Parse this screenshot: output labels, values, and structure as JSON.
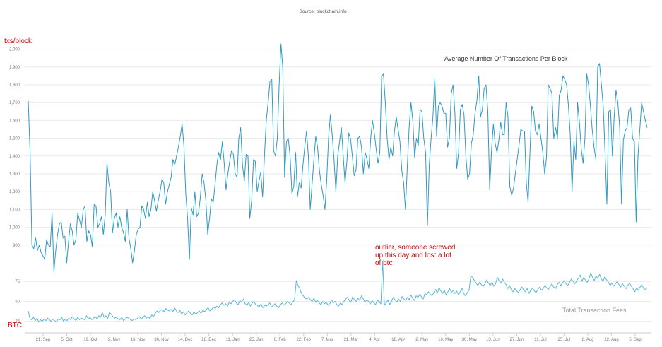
{
  "source": "Source: blockchain.info",
  "chart_data": [
    {
      "type": "line",
      "title": "Average Number Of Transactions Per Block",
      "ylabel": "txs/block",
      "ylim": [
        800,
        2050
      ],
      "yticks": [
        900,
        1000,
        1100,
        1200,
        1300,
        1400,
        1500,
        1600,
        1700,
        1800,
        1900,
        2000
      ],
      "ytick_labels": [
        "900",
        "1,000",
        "1,100",
        "1,200",
        "1,300",
        "1,400",
        "1,500",
        "1,600",
        "1,700",
        "1,800",
        "1,900",
        "2,000"
      ],
      "grid": true,
      "color": "#2e9ac4",
      "series": [
        {
          "values": [
            1710,
            1420,
            900,
            880,
            940,
            870,
            900,
            860,
            840,
            820,
            930,
            900,
            890,
            1080,
            750,
            870,
            960,
            1020,
            1030,
            940,
            950,
            800,
            920,
            1020,
            980,
            900,
            930,
            1080,
            1040,
            1000,
            1100,
            1120,
            920,
            980,
            960,
            890,
            1130,
            1120,
            1000,
            1020,
            1060,
            960,
            1070,
            1360,
            1250,
            1200,
            970,
            1050,
            1080,
            1000,
            1060,
            1000,
            970,
            920,
            1100,
            940,
            880,
            800,
            870,
            960,
            990,
            1000,
            1120,
            1100,
            1050,
            1140,
            1060,
            1100,
            1200,
            1150,
            1090,
            1150,
            1200,
            1270,
            1250,
            1130,
            1200,
            1240,
            1280,
            1380,
            1350,
            1400,
            1450,
            1510,
            1580,
            1460,
            1190,
            1050,
            820,
            1110,
            1070,
            1200,
            1060,
            1080,
            1170,
            1300,
            1250,
            1150,
            960,
            1050,
            1160,
            1140,
            1240,
            1350,
            1420,
            1380,
            1480,
            1360,
            1210,
            1300,
            1370,
            1430,
            1410,
            1300,
            1280,
            1500,
            1560,
            1350,
            1260,
            1410,
            1400,
            1050,
            1150,
            1380,
            1370,
            1200,
            1260,
            1310,
            1170,
            1400,
            1600,
            1700,
            1820,
            1830,
            1430,
            1400,
            1500,
            1800,
            2030,
            1900,
            1280,
            1480,
            1500,
            1400,
            1190,
            1230,
            1420,
            1170,
            1250,
            1220,
            1350,
            1450,
            1540,
            1400,
            1100,
            1240,
            1380,
            1510,
            1450,
            1320,
            1240,
            1180,
            1100,
            1260,
            1500,
            1630,
            1520,
            1380,
            1200,
            1400,
            1480,
            1560,
            1400,
            1250,
            1370,
            1530,
            1500,
            1400,
            1290,
            1320,
            1500,
            1510,
            1450,
            1300,
            1420,
            1380,
            1330,
            1500,
            1600,
            1530,
            1440,
            1360,
            1420,
            1850,
            1860,
            1700,
            1500,
            1380,
            1450,
            1400,
            1540,
            1620,
            1550,
            1480,
            1320,
            1250,
            1100,
            1340,
            1560,
            1700,
            1600,
            1390,
            1500,
            1460,
            1660,
            1650,
            1500,
            1420,
            1010,
            1350,
            1500,
            1620,
            1840,
            1510,
            1680,
            1700,
            1680,
            1640,
            1640,
            1450,
            1500,
            1750,
            1800,
            1640,
            1330,
            1420,
            1660,
            1690,
            1630,
            1400,
            1270,
            1300,
            1470,
            1520,
            1640,
            1710,
            1850,
            1620,
            1660,
            1780,
            1800,
            1650,
            1210,
            1430,
            1580,
            1470,
            1420,
            1490,
            1590,
            1520,
            1520,
            1700,
            1620,
            1230,
            1180,
            1220,
            1300,
            1380,
            1460,
            1550,
            1540,
            1540,
            1250,
            1140,
            1420,
            1680,
            1650,
            1540,
            1520,
            1580,
            1500,
            1420,
            1300,
            1390,
            1800,
            1780,
            1750,
            1500,
            1560,
            1500,
            1740,
            1770,
            1850,
            1830,
            1800,
            1680,
            1520,
            1200,
            1480,
            1380,
            1700,
            1590,
            1440,
            1360,
            1500,
            1860,
            1800,
            1680,
            1550,
            1450,
            1380,
            1900,
            1920,
            1800,
            1680,
            1420,
            1130,
            1650,
            1660,
            1400,
            1620,
            1770,
            1700,
            1560,
            1130,
            1490,
            1540,
            1560,
            1660,
            1670,
            1500,
            1480,
            1030,
            1400,
            1550,
            1700,
            1650,
            1600,
            1560
          ]
        }
      ]
    },
    {
      "type": "line",
      "title": "Total Transaction Fees",
      "ylabel": "BTC",
      "ylim": [
        15,
        100
      ],
      "yticks": [
        25,
        50,
        75
      ],
      "ytick_labels": [
        "25",
        "50",
        "75"
      ],
      "grid": true,
      "color": "#5ab6d6",
      "annotation": "outlier, someone screwed\nup this day and lost a lot\nof btc",
      "x_labels": [
        "21. Sep",
        "5. Oct",
        "19. Oct",
        "2. Nov",
        "16. Nov",
        "30. Nov",
        "14. Dec",
        "28. Dec",
        "11. Jan",
        "25. Jan",
        "8. Feb",
        "22. Feb",
        "7. Mar",
        "21. Mar",
        "4. Apr",
        "18. Apr",
        "2. May",
        "16. May",
        "30. May",
        "13. Jun",
        "27. Jun",
        "11. Jul",
        "25. Jul",
        "8. Aug",
        "22. Aug",
        "5. Sep"
      ],
      "series": [
        {
          "values": [
            38,
            28,
            27,
            30,
            26,
            29,
            24,
            27,
            25,
            28,
            26,
            29,
            27,
            25,
            28,
            26,
            24,
            28,
            27,
            30,
            25,
            28,
            26,
            29,
            27,
            31,
            28,
            26,
            30,
            27,
            29,
            28,
            27,
            32,
            28,
            30,
            27,
            29,
            31,
            28,
            32,
            30,
            36,
            30,
            32,
            28,
            36,
            34,
            31,
            29,
            30,
            28,
            27,
            30,
            26,
            28,
            30,
            29,
            27,
            26,
            28,
            27,
            29,
            31,
            28,
            30,
            32,
            29,
            31,
            28,
            33,
            31,
            35,
            38,
            36,
            39,
            40,
            37,
            41,
            39,
            38,
            40,
            37,
            42,
            38,
            36,
            39,
            34,
            37,
            33,
            36,
            38,
            35,
            33,
            37,
            34,
            36,
            38,
            35,
            39,
            37,
            40,
            42,
            38,
            40,
            43,
            41,
            44,
            42,
            46,
            48,
            45,
            47,
            44,
            49,
            47,
            50,
            52,
            48,
            46,
            51,
            49,
            53,
            47,
            45,
            49,
            44,
            48,
            50,
            46,
            45,
            43,
            47,
            42,
            45,
            44,
            46,
            48,
            43,
            45,
            47,
            44,
            42,
            46,
            48,
            45,
            47,
            50,
            48,
            46,
            49,
            52,
            76,
            70,
            66,
            60,
            57,
            54,
            53,
            55,
            52,
            50,
            54,
            49,
            51,
            48,
            46,
            50,
            47,
            49,
            45,
            47,
            52,
            48,
            50,
            46,
            44,
            48,
            46,
            50,
            53,
            55,
            51,
            49,
            56,
            52,
            50,
            54,
            51,
            57,
            53,
            49,
            52,
            50,
            47,
            51,
            48,
            46,
            52,
            49,
            47,
            100,
            45,
            48,
            52,
            46,
            50,
            55,
            52,
            49,
            53,
            50,
            56,
            53,
            51,
            55,
            52,
            58,
            54,
            51,
            57,
            55,
            59,
            56,
            53,
            60,
            58,
            62,
            59,
            57,
            61,
            65,
            60,
            67,
            63,
            60,
            64,
            58,
            62,
            66,
            61,
            64,
            60,
            63,
            58,
            62,
            66,
            60,
            57,
            61,
            64,
            82,
            80,
            76,
            73,
            70,
            74,
            71,
            69,
            72,
            77,
            73,
            70,
            74,
            69,
            72,
            80,
            76,
            73,
            78,
            74,
            71,
            66,
            70,
            64,
            62,
            66,
            63,
            61,
            65,
            68,
            64,
            62,
            66,
            60,
            64,
            67,
            63,
            61,
            65,
            68,
            64,
            66,
            70,
            67,
            65,
            69,
            72,
            68,
            66,
            71,
            74,
            70,
            73,
            76,
            72,
            70,
            74,
            78,
            75,
            72,
            76,
            79,
            83,
            75,
            80,
            77,
            74,
            78,
            86,
            80,
            76,
            82,
            79,
            84,
            78,
            75,
            81,
            77,
            74,
            70,
            73,
            69,
            72,
            75,
            71,
            68,
            72,
            69,
            66,
            70,
            73,
            69,
            66,
            62,
            67,
            64,
            68,
            71,
            66,
            65,
            67
          ]
        }
      ]
    }
  ]
}
